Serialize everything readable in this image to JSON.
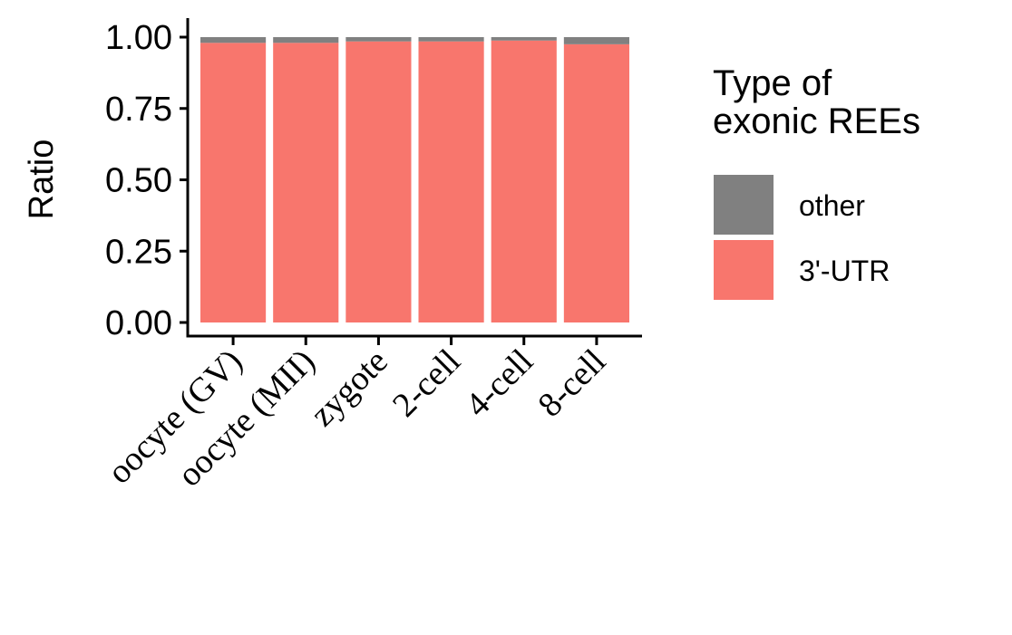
{
  "chart_data": {
    "type": "bar",
    "stacked": true,
    "categories": [
      "oocyte (GV)",
      "oocyte (MII)",
      "zygote",
      "2-cell",
      "4-cell",
      "8-cell"
    ],
    "series": [
      {
        "name": "3'-UTR",
        "color": "#F8766D",
        "values": [
          0.98,
          0.98,
          0.985,
          0.985,
          0.988,
          0.975
        ]
      },
      {
        "name": "other",
        "color": "#808080",
        "values": [
          0.02,
          0.02,
          0.015,
          0.015,
          0.012,
          0.025
        ]
      }
    ],
    "ylabel": "Ratio",
    "xlabel": "",
    "ylim": [
      0,
      1
    ],
    "yticks": [
      "0.00",
      "0.25",
      "0.50",
      "0.75",
      "1.00"
    ],
    "legend": {
      "title_lines": [
        "Type of",
        "exonic REEs"
      ],
      "position": "right",
      "order": [
        "other",
        "3'-UTR"
      ]
    },
    "grid": false
  }
}
